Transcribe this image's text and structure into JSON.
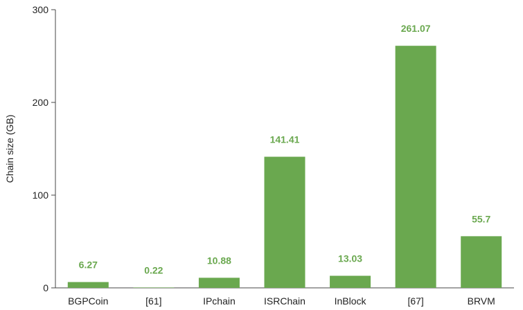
{
  "chart_data": {
    "type": "bar",
    "title": "",
    "xlabel": "",
    "ylabel": "Chain size (GB)",
    "categories": [
      "BGPCoin",
      "[61]",
      "IPchain",
      "ISRChain",
      "InBlock",
      "[67]",
      "BRVM"
    ],
    "values": [
      6.27,
      0.22,
      10.88,
      141.41,
      13.03,
      261.07,
      55.7
    ],
    "value_labels": [
      "6.27",
      "0.22",
      "10.88",
      "141.41",
      "13.03",
      "261.07",
      "55.7"
    ],
    "ylim": [
      0,
      300
    ],
    "yticks": [
      0,
      100,
      200,
      300
    ],
    "ytick_labels": [
      "0",
      "100",
      "200",
      "300"
    ],
    "grid": false,
    "legend": "none",
    "colors": {
      "bar": "#6aa84f",
      "label": "#6aa84f",
      "axis": "#444444",
      "text": "#222222"
    }
  }
}
